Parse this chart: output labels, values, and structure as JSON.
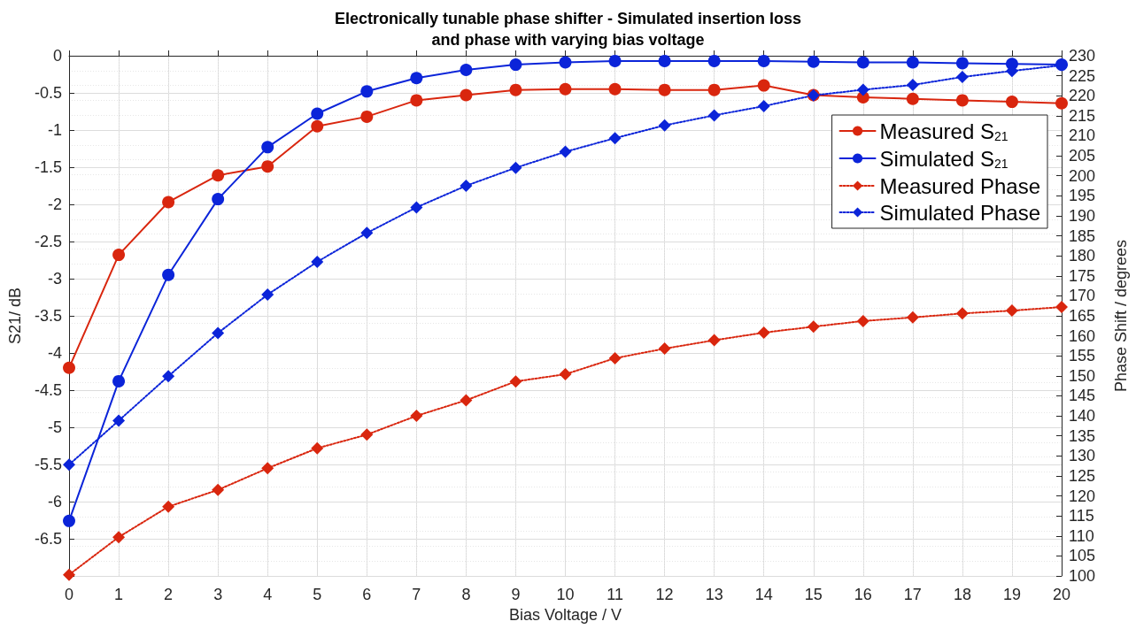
{
  "chart_data": {
    "type": "line",
    "title": "Electronically tunable phase shifter - Simulated insertion loss\nand phase with varying bias voltage",
    "xlabel": "Bias Voltage / V",
    "ylabel": "S21/ dB",
    "y2label": "Phase Shift / degrees",
    "x": [
      0,
      1,
      2,
      3,
      4,
      5,
      6,
      7,
      8,
      9,
      10,
      11,
      12,
      13,
      14,
      15,
      16,
      17,
      18,
      19,
      20
    ],
    "series": [
      {
        "name": "Measured S$_{21}$",
        "color": "#d9260e",
        "marker": "circle",
        "line_style": "solid",
        "values": [
          -4.2,
          -2.68,
          -1.97,
          -1.61,
          -1.49,
          -0.95,
          -0.82,
          -0.6,
          -0.53,
          -0.46,
          -0.45,
          -0.45,
          -0.46,
          -0.46,
          -0.4,
          -0.53,
          -0.56,
          -0.58,
          -0.6,
          -0.62,
          -0.64
        ]
      },
      {
        "name": "Simulated S$_{21}$",
        "color": "#0b24d9",
        "marker": "circle",
        "line_style": "solid",
        "values": [
          -6.26,
          -4.38,
          -2.95,
          -1.93,
          -1.23,
          -0.78,
          -0.48,
          -0.3,
          -0.19,
          -0.12,
          -0.09,
          -0.07,
          -0.07,
          -0.07,
          -0.07,
          -0.08,
          -0.09,
          -0.09,
          -0.1,
          -0.11,
          -0.12
        ]
      },
      {
        "name": "Measured Phase",
        "color": "#d9260e",
        "marker": "diamond",
        "line_style": "dotted",
        "axis": "y2",
        "values": [
          100.3,
          109.7,
          117.3,
          121.5,
          126.9,
          131.9,
          135.3,
          140,
          143.9,
          148.6,
          150.4,
          154.4,
          156.8,
          158.9,
          160.8,
          162.3,
          163.7,
          164.6,
          165.6,
          166.3,
          167.2
        ]
      },
      {
        "name": "Simulated Phase",
        "color": "#0b24d9",
        "marker": "diamond",
        "line_style": "dotted",
        "axis": "y2",
        "values": [
          127.8,
          138.8,
          149.9,
          160.7,
          170.3,
          178.5,
          185.7,
          192.1,
          197.5,
          202,
          206,
          209.4,
          212.6,
          215.1,
          217.4,
          220.1,
          221.5,
          222.7,
          224.7,
          226.2,
          227.6
        ]
      }
    ],
    "xlim": [
      0,
      20
    ],
    "xticks": [
      0,
      1,
      2,
      3,
      4,
      5,
      6,
      7,
      8,
      9,
      10,
      11,
      12,
      13,
      14,
      15,
      16,
      17,
      18,
      19,
      20
    ],
    "ylim": [
      -7,
      0
    ],
    "yticks": [
      {
        "value": -7,
        "label": null
      },
      -6.5,
      -6,
      -5.5,
      -5,
      -4.5,
      -4,
      -3.5,
      -3,
      -2.5,
      -2,
      -1.5,
      -1,
      -0.5,
      0
    ],
    "y2lim": [
      100,
      230
    ],
    "y2ticks": [
      100,
      105,
      110,
      115,
      120,
      125,
      130,
      135,
      140,
      145,
      150,
      155,
      160,
      165,
      170,
      175,
      180,
      185,
      190,
      195,
      200,
      205,
      210,
      215,
      220,
      225,
      230
    ],
    "grid": true,
    "legend": "right"
  }
}
